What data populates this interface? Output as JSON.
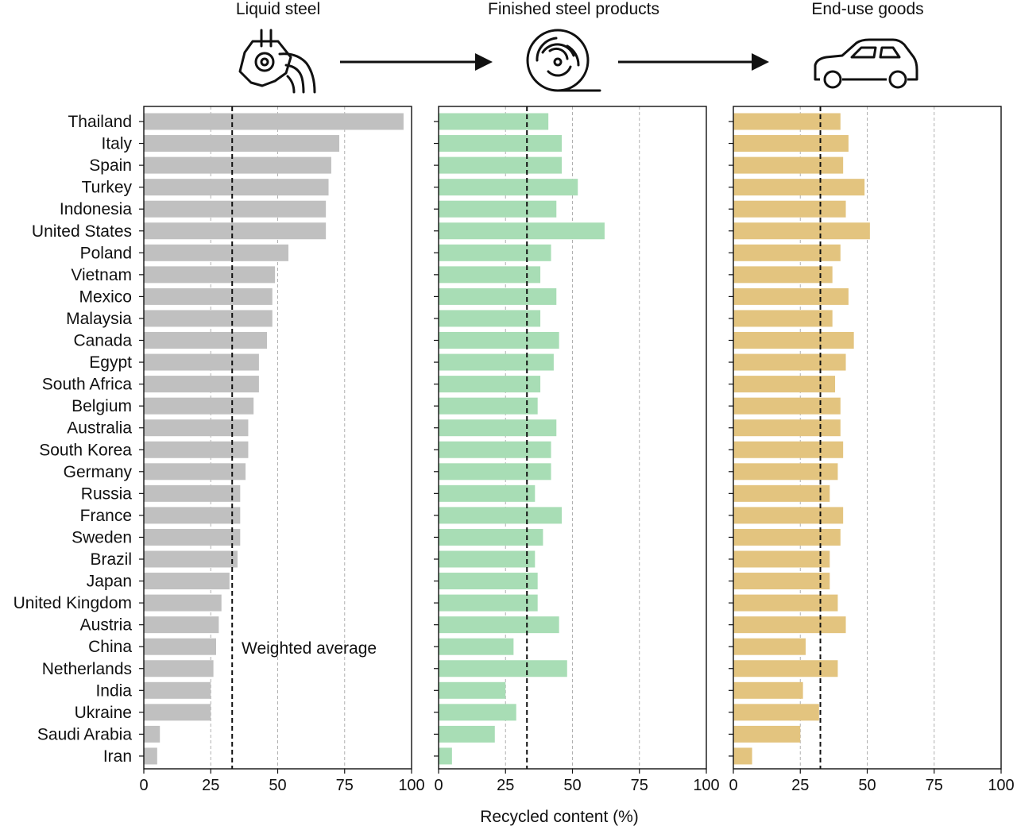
{
  "stages": [
    {
      "title": "Liquid steel",
      "icon": "ladle-icon"
    },
    {
      "title": "Finished steel products",
      "icon": "steel-coil-icon"
    },
    {
      "title": "End-use goods",
      "icon": "car-icon"
    }
  ],
  "chart_data": {
    "type": "bar",
    "orientation": "horizontal",
    "categories": [
      "Thailand",
      "Italy",
      "Spain",
      "Turkey",
      "Indonesia",
      "United States",
      "Poland",
      "Vietnam",
      "Mexico",
      "Malaysia",
      "Canada",
      "Egypt",
      "South Africa",
      "Belgium",
      "Australia",
      "South Korea",
      "Germany",
      "Russia",
      "France",
      "Sweden",
      "Brazil",
      "Japan",
      "United Kingdom",
      "Austria",
      "China",
      "Netherlands",
      "India",
      "Ukraine",
      "Saudi Arabia",
      "Iran"
    ],
    "xlabel": "Recycled content (%)",
    "xlim": [
      0,
      100
    ],
    "xticks": [
      0,
      25,
      50,
      75,
      100
    ],
    "grid": "vertical dashed at 25, 50, 75",
    "annotation": "Weighted average",
    "series": [
      {
        "name": "Liquid steel",
        "color": "#c0c0c0",
        "weighted_average": 33,
        "values": [
          97,
          73,
          70,
          69,
          68,
          68,
          54,
          49,
          48,
          48,
          46,
          43,
          43,
          41,
          39,
          39,
          38,
          36,
          36,
          36,
          35,
          32,
          29,
          28,
          27,
          26,
          25,
          25,
          6,
          5
        ]
      },
      {
        "name": "Finished steel products",
        "color": "#a8ddb5",
        "weighted_average": 33,
        "values": [
          41,
          46,
          46,
          52,
          44,
          62,
          42,
          38,
          44,
          38,
          45,
          43,
          38,
          37,
          44,
          42,
          42,
          36,
          46,
          39,
          36,
          37,
          37,
          45,
          28,
          48,
          25,
          29,
          21,
          5
        ]
      },
      {
        "name": "End-use goods",
        "color": "#e3c47f",
        "weighted_average": 32.5,
        "values": [
          40,
          43,
          41,
          49,
          42,
          51,
          40,
          37,
          43,
          37,
          45,
          42,
          38,
          40,
          40,
          41,
          39,
          36,
          41,
          40,
          36,
          36,
          39,
          42,
          27,
          39,
          26,
          32,
          25,
          7
        ]
      }
    ]
  }
}
